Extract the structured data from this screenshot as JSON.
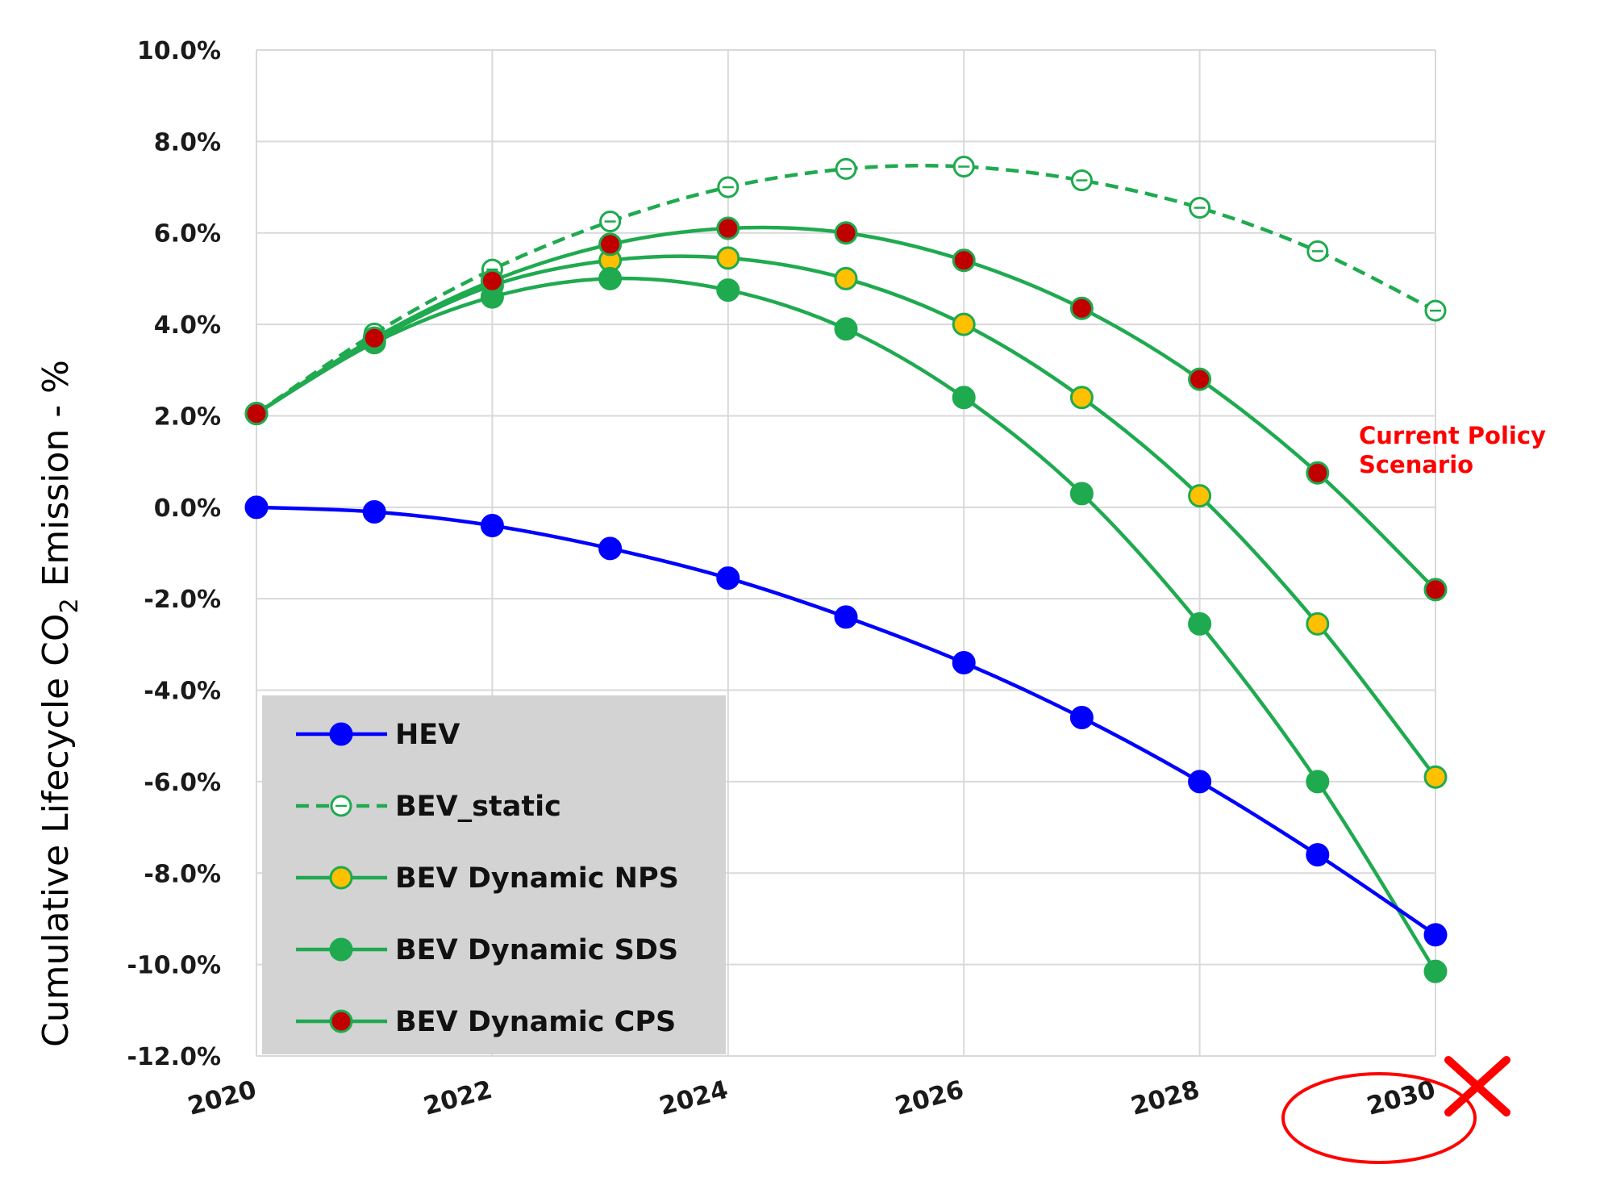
{
  "chart_data": {
    "type": "line",
    "title": "",
    "xlabel": "",
    "ylabel": "Cumulative Lifecycle CO2 Emission - %",
    "ylabel_parts": {
      "before": "Cumulative Lifecycle CO",
      "sub": "2",
      "after": " Emission - %"
    },
    "x": [
      2020,
      2021,
      2022,
      2023,
      2024,
      2025,
      2026,
      2027,
      2028,
      2029,
      2030
    ],
    "xlim": [
      2020,
      2030
    ],
    "ylim": [
      -12,
      10
    ],
    "x_ticks": [
      2020,
      2022,
      2024,
      2026,
      2028,
      2030
    ],
    "x_tick_labels": [
      "2020",
      "2022",
      "2024",
      "2026",
      "2028",
      "2030"
    ],
    "y_ticks": [
      10,
      8,
      6,
      4,
      2,
      0,
      -2,
      -4,
      -6,
      -8,
      -10,
      -12
    ],
    "y_tick_labels": [
      "10.0%",
      "8.0%",
      "6.0%",
      "4.0%",
      "2.0%",
      "0.0%",
      "-2.0%",
      "-4.0%",
      "-6.0%",
      "-8.0%",
      "-10.0%",
      "-12.0%"
    ],
    "grid": true,
    "legend_position": "bottom-left",
    "series": [
      {
        "name": "HEV",
        "color": "#0000ff",
        "marker_fill": "#0000ff",
        "marker_stroke": "#0000ff",
        "dashed": false,
        "hollow": false,
        "values": [
          0.0,
          -0.1,
          -0.4,
          -0.9,
          -1.55,
          -2.4,
          -3.4,
          -4.6,
          -6.0,
          -7.6,
          -9.35
        ]
      },
      {
        "name": "BEV_static",
        "color": "#1faa4f",
        "marker_fill": "#ffffff",
        "marker_stroke": "#1faa4f",
        "dashed": true,
        "hollow": true,
        "values": [
          2.05,
          3.8,
          5.2,
          6.25,
          7.0,
          7.4,
          7.45,
          7.15,
          6.55,
          5.6,
          4.3
        ]
      },
      {
        "name": "BEV Dynamic NPS",
        "color": "#1faa4f",
        "marker_fill": "#ffc000",
        "marker_stroke": "#1faa4f",
        "dashed": false,
        "hollow": false,
        "values": [
          2.05,
          3.65,
          4.85,
          5.4,
          5.45,
          5.0,
          4.0,
          2.4,
          0.25,
          -2.55,
          -5.9
        ]
      },
      {
        "name": "BEV Dynamic SDS",
        "color": "#1faa4f",
        "marker_fill": "#1faa4f",
        "marker_stroke": "#1faa4f",
        "dashed": false,
        "hollow": false,
        "values": [
          2.05,
          3.6,
          4.6,
          5.0,
          4.75,
          3.9,
          2.4,
          0.3,
          -2.55,
          -6.0,
          -10.15
        ]
      },
      {
        "name": "BEV Dynamic CPS",
        "color": "#1faa4f",
        "marker_fill": "#c00000",
        "marker_stroke": "#1faa4f",
        "dashed": false,
        "hollow": false,
        "values": [
          2.05,
          3.7,
          4.95,
          5.75,
          6.1,
          6.0,
          5.4,
          4.35,
          2.8,
          0.75,
          -1.8
        ]
      }
    ],
    "annotations": [
      {
        "lines": [
          "Current Policy",
          "Scenario"
        ],
        "color": "#ff0000",
        "x": 2029.35,
        "y": 0.9
      }
    ],
    "highlight": {
      "tick": "2030",
      "color": "#ff0000",
      "mark": "cross"
    }
  }
}
